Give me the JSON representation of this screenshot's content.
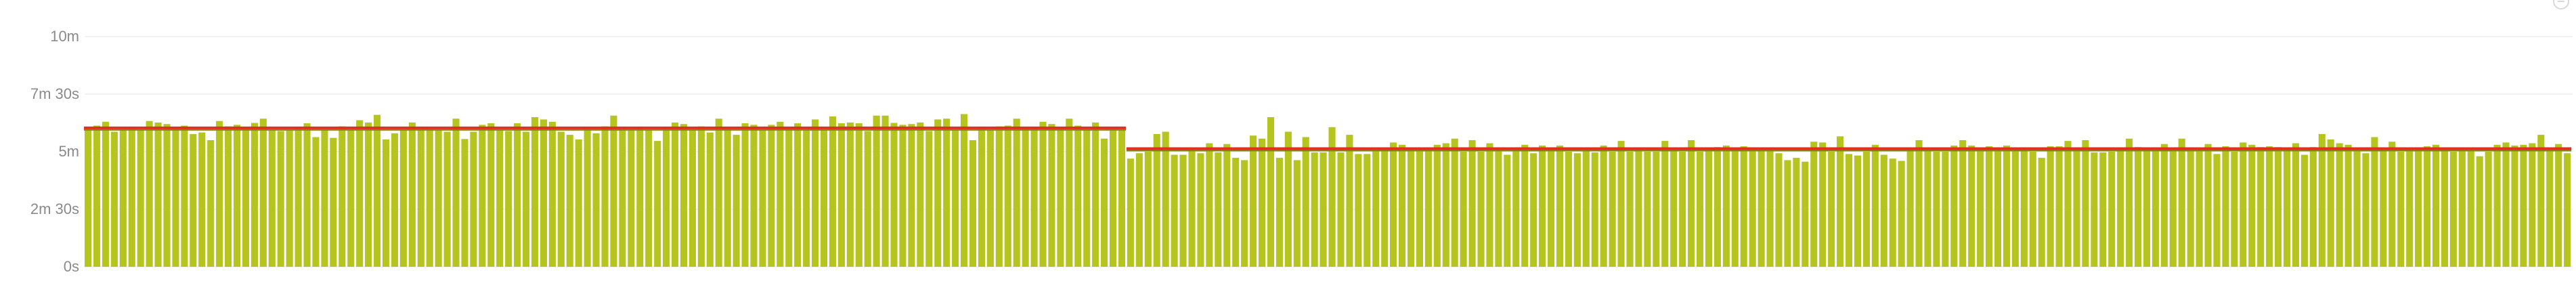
{
  "chart_data": {
    "type": "bar",
    "y_tick_labels": [
      "0s",
      "2m 30s",
      "5m",
      "7m 30s",
      "10m"
    ],
    "y_tick_values_seconds": [
      0,
      150,
      300,
      450,
      600
    ],
    "ylim_seconds": [
      0,
      600
    ],
    "grid": true,
    "colors": {
      "bar": "#b5c41f",
      "bar_edge": "#9fae14",
      "average_line": "#e0301e",
      "average_line_shadow": "#7a8a10",
      "grid": "#e6e6e6",
      "tick_text": "#8a8a8a"
    },
    "series": [
      {
        "values": [
          362,
          368,
          378,
          352,
          364,
          364,
          358,
          380,
          376,
          372,
          365,
          368,
          346,
          350,
          330,
          380,
          366,
          370,
          360,
          375,
          386,
          356,
          354,
          356,
          360,
          374,
          338,
          358,
          336,
          366,
          356,
          382,
          376,
          396,
          332,
          348,
          358,
          376,
          362,
          364,
          356,
          352,
          386,
          333,
          352,
          370,
          374,
          358,
          354,
          374,
          352,
          390,
          384,
          378,
          352,
          344,
          332,
          364,
          348,
          366,
          394,
          362,
          364,
          362,
          358,
          328,
          362,
          376,
          372,
          358,
          366,
          350,
          386,
          360,
          344,
          374,
          370,
          356,
          370,
          378,
          360,
          374,
          356,
          384,
          356,
          392,
          374,
          376,
          374,
          354,
          394,
          394,
          375,
          370,
          372,
          376,
          354,
          384,
          386,
          357,
          398,
          330,
          364,
          358,
          366,
          368,
          386,
          364,
          360,
          378,
          372,
          362,
          386,
          368,
          358,
          376,
          334,
          360,
          358
        ],
        "average": 362
      },
      {
        "values": [
          282,
          296,
          300,
          346,
          352,
          292,
          292,
          302,
          296,
          322,
          298,
          320,
          284,
          278,
          342,
          334,
          390,
          284,
          352,
          278,
          338,
          298,
          298,
          364,
          298,
          344,
          294,
          294,
          302,
          304,
          324,
          318,
          302,
          304,
          302,
          318,
          322,
          334,
          300,
          330,
          300,
          322,
          302,
          292,
          302,
          318,
          296,
          316,
          302,
          316,
          300,
          296,
          304,
          298,
          316,
          300,
          328,
          300,
          308,
          300,
          300,
          328,
          304,
          300,
          330,
          300,
          310,
          312,
          316,
          304,
          314,
          308,
          306,
          302,
          296,
          278,
          284,
          274,
          326,
          324,
          300,
          340,
          294,
          290,
          300,
          318,
          292,
          282,
          276,
          302,
          330,
          304,
          300,
          300,
          316,
          330,
          316,
          306,
          314,
          308,
          316,
          306,
          302,
          300,
          284,
          314,
          314,
          328,
          302,
          330,
          298,
          298,
          300,
          304,
          334,
          312,
          308,
          302,
          320,
          304,
          334,
          310,
          302,
          320,
          294,
          314,
          300,
          324,
          318,
          312,
          314,
          312,
          310,
          322,
          292,
          312,
          346,
          332,
          322,
          318,
          306,
          296,
          338,
          302,
          326,
          300,
          308,
          308,
          314,
          318,
          302,
          300,
          302,
          306,
          288,
          300,
          318,
          324,
          316,
          318,
          322,
          344,
          302,
          320,
          296
        ],
        "average": 308
      }
    ]
  }
}
